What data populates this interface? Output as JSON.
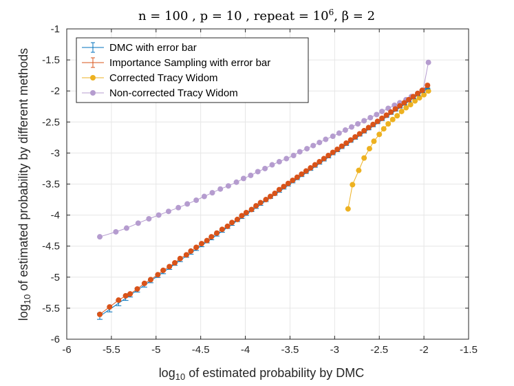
{
  "chart_data": {
    "type": "line",
    "title": "n = 100 , p = 10 , repeat = 10",
    "title_exponent": "6",
    "title_suffix": ", β = 2",
    "xlabel_prefix": "log",
    "xlabel_sub": "10",
    "xlabel_rest": " of estimated probability by DMC",
    "ylabel_prefix": "log",
    "ylabel_sub": "10",
    "ylabel_rest": " of estimated probability by different methods",
    "xlim": [
      -6,
      -1.5
    ],
    "ylim": [
      -6,
      -1
    ],
    "xticks": [
      -6,
      -5.5,
      -5,
      -4.5,
      -4,
      -3.5,
      -3,
      -2.5,
      -2,
      -1.5
    ],
    "yticks": [
      -6,
      -5.5,
      -5,
      -4.5,
      -4,
      -3.5,
      -3,
      -2.5,
      -2,
      -1.5,
      -1
    ],
    "grid": true,
    "legend_position": "top-left",
    "x": [
      -5.63,
      -5.52,
      -5.42,
      -5.34,
      -5.29,
      -5.21,
      -5.13,
      -5.06,
      -4.98,
      -4.92,
      -4.85,
      -4.79,
      -4.73,
      -4.66,
      -4.61,
      -4.55,
      -4.49,
      -4.43,
      -4.38,
      -4.32,
      -4.26,
      -4.2,
      -4.15,
      -4.09,
      -4.04,
      -3.99,
      -3.93,
      -3.88,
      -3.83,
      -3.77,
      -3.72,
      -3.67,
      -3.62,
      -3.57,
      -3.52,
      -3.47,
      -3.42,
      -3.37,
      -3.32,
      -3.27,
      -3.22,
      -3.17,
      -3.12,
      -3.07,
      -3.02,
      -2.97,
      -2.92,
      -2.87,
      -2.82,
      -2.77,
      -2.72,
      -2.67,
      -2.62,
      -2.57,
      -2.52,
      -2.47,
      -2.42,
      -2.37,
      -2.32,
      -2.27,
      -2.22,
      -2.17,
      -2.12,
      -2.07,
      -2.02,
      -1.96
    ],
    "series": [
      {
        "name": "DMC with error bar",
        "color": "#0072BD",
        "marker": "errorbar",
        "values": [
          -5.63,
          -5.52,
          -5.42,
          -5.34,
          -5.29,
          -5.21,
          -5.13,
          -5.06,
          -4.98,
          -4.92,
          -4.85,
          -4.79,
          -4.73,
          -4.66,
          -4.61,
          -4.55,
          -4.49,
          -4.43,
          -4.38,
          -4.32,
          -4.26,
          -4.2,
          -4.15,
          -4.09,
          -4.04,
          -3.99,
          -3.93,
          -3.88,
          -3.83,
          -3.77,
          -3.72,
          -3.67,
          -3.62,
          -3.57,
          -3.52,
          -3.47,
          -3.42,
          -3.37,
          -3.32,
          -3.27,
          -3.22,
          -3.17,
          -3.12,
          -3.07,
          -3.02,
          -2.97,
          -2.92,
          -2.87,
          -2.82,
          -2.77,
          -2.72,
          -2.67,
          -2.62,
          -2.57,
          -2.52,
          -2.47,
          -2.42,
          -2.37,
          -2.32,
          -2.27,
          -2.22,
          -2.17,
          -2.12,
          -2.07,
          -2.02,
          -1.96
        ],
        "error": [
          0.05,
          0.04,
          0.04,
          0.035,
          0.03,
          0.03,
          0.03,
          0.03,
          0.025,
          0.025,
          0.025,
          0.02,
          0.02,
          0.02,
          0.02,
          0.02,
          0.02,
          0.018,
          0.018,
          0.018,
          0.016,
          0.016,
          0.016,
          0.015,
          0.015,
          0.014,
          0.014,
          0.013,
          0.013,
          0.013,
          0.012,
          0.012,
          0.012,
          0.011,
          0.011,
          0.011,
          0.01,
          0.01,
          0.01,
          0.01,
          0.01,
          0.01,
          0.009,
          0.009,
          0.009,
          0.009,
          0.008,
          0.008,
          0.008,
          0.008,
          0.008,
          0.008,
          0.007,
          0.007,
          0.007,
          0.007,
          0.007,
          0.007,
          0.006,
          0.006,
          0.006,
          0.006,
          0.006,
          0.006,
          0.006,
          0.006
        ]
      },
      {
        "name": "Importance Sampling with error bar",
        "color": "#D95319",
        "marker": "dot-errorbar",
        "values": [
          -5.6,
          -5.48,
          -5.37,
          -5.3,
          -5.27,
          -5.19,
          -5.1,
          -5.04,
          -4.96,
          -4.89,
          -4.83,
          -4.77,
          -4.7,
          -4.64,
          -4.58,
          -4.52,
          -4.46,
          -4.41,
          -4.35,
          -4.29,
          -4.23,
          -4.18,
          -4.12,
          -4.07,
          -4.01,
          -3.96,
          -3.91,
          -3.85,
          -3.8,
          -3.75,
          -3.7,
          -3.65,
          -3.59,
          -3.54,
          -3.49,
          -3.44,
          -3.39,
          -3.34,
          -3.29,
          -3.24,
          -3.19,
          -3.14,
          -3.09,
          -3.04,
          -2.99,
          -2.94,
          -2.89,
          -2.84,
          -2.79,
          -2.74,
          -2.69,
          -2.64,
          -2.59,
          -2.54,
          -2.49,
          -2.44,
          -2.39,
          -2.34,
          -2.29,
          -2.24,
          -2.19,
          -2.14,
          -2.09,
          -2.04,
          -1.99,
          -1.91
        ],
        "error": [
          0.02,
          0.02,
          0.02,
          0.02,
          0.018,
          0.018,
          0.016,
          0.016,
          0.015,
          0.015,
          0.014,
          0.014,
          0.013,
          0.013,
          0.012,
          0.012,
          0.012,
          0.011,
          0.011,
          0.011,
          0.01,
          0.01,
          0.01,
          0.01,
          0.01,
          0.01,
          0.009,
          0.009,
          0.009,
          0.009,
          0.008,
          0.008,
          0.008,
          0.008,
          0.008,
          0.008,
          0.007,
          0.007,
          0.007,
          0.007,
          0.007,
          0.007,
          0.006,
          0.006,
          0.006,
          0.006,
          0.006,
          0.006,
          0.006,
          0.006,
          0.005,
          0.005,
          0.005,
          0.005,
          0.005,
          0.005,
          0.005,
          0.005,
          0.005,
          0.005,
          0.005,
          0.005,
          0.005,
          0.005,
          0.005,
          0.03
        ]
      },
      {
        "name": "Corrected Tracy Widom",
        "color": "#EDB120",
        "marker": "dot",
        "x": [
          -2.85,
          -2.8,
          -2.73,
          -2.67,
          -2.61,
          -2.56,
          -2.5,
          -2.45,
          -2.4,
          -2.35,
          -2.3,
          -2.25,
          -2.2,
          -2.15,
          -2.1,
          -2.05,
          -2.0,
          -1.95
        ],
        "values": [
          -3.9,
          -3.51,
          -3.28,
          -3.08,
          -2.93,
          -2.81,
          -2.7,
          -2.61,
          -2.53,
          -2.46,
          -2.4,
          -2.33,
          -2.27,
          -2.22,
          -2.16,
          -2.11,
          -2.06,
          -2.0
        ]
      },
      {
        "name": "Non-corrected Tracy Widom",
        "color": "#B59CCF",
        "marker": "dot",
        "x": [
          -5.63,
          -5.45,
          -5.33,
          -5.2,
          -5.08,
          -4.97,
          -4.86,
          -4.75,
          -4.65,
          -4.55,
          -4.46,
          -4.37,
          -4.28,
          -4.19,
          -4.1,
          -4.02,
          -3.94,
          -3.86,
          -3.78,
          -3.7,
          -3.62,
          -3.54,
          -3.46,
          -3.39,
          -3.31,
          -3.24,
          -3.17,
          -3.1,
          -3.02,
          -2.95,
          -2.88,
          -2.81,
          -2.74,
          -2.67,
          -2.6,
          -2.53,
          -2.47,
          -2.4,
          -2.33,
          -2.27,
          -2.2,
          -2.14,
          -2.07,
          -2.01,
          -1.95
        ],
        "values": [
          -4.35,
          -4.27,
          -4.21,
          -4.13,
          -4.06,
          -4.0,
          -3.94,
          -3.88,
          -3.82,
          -3.76,
          -3.7,
          -3.64,
          -3.58,
          -3.53,
          -3.47,
          -3.41,
          -3.36,
          -3.3,
          -3.25,
          -3.19,
          -3.14,
          -3.09,
          -3.04,
          -2.98,
          -2.93,
          -2.88,
          -2.83,
          -2.78,
          -2.73,
          -2.68,
          -2.63,
          -2.58,
          -2.53,
          -2.48,
          -2.43,
          -2.38,
          -2.33,
          -2.28,
          -2.23,
          -2.19,
          -2.14,
          -2.09,
          -2.04,
          -1.99,
          -1.54
        ]
      }
    ]
  }
}
